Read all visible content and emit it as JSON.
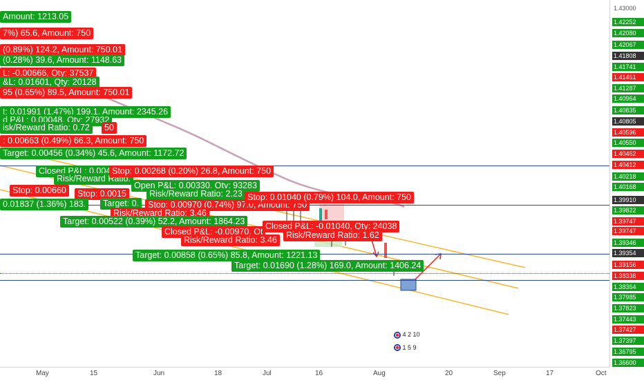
{
  "price_axis": {
    "labels": [
      {
        "text": "1.43000",
        "style": "n"
      },
      {
        "text": "1.42252",
        "style": "g"
      },
      {
        "text": "1.42080",
        "style": "g"
      },
      {
        "text": "1.42067",
        "style": "g"
      },
      {
        "text": "1.41808",
        "style": "d"
      },
      {
        "text": "1.41741",
        "style": "g"
      },
      {
        "text": "1.41461",
        "style": "r"
      },
      {
        "text": "1.41287",
        "style": "g"
      },
      {
        "text": "1.40964",
        "style": "g"
      },
      {
        "text": "1.40835",
        "style": "g"
      },
      {
        "text": "1.40805",
        "style": "d"
      },
      {
        "text": "1.40596",
        "style": "r"
      },
      {
        "text": "1.40550",
        "style": "g"
      },
      {
        "text": "1.40462",
        "style": "r"
      },
      {
        "text": "1.40412",
        "style": "r"
      },
      {
        "text": "1.40218",
        "style": "g"
      },
      {
        "text": "1.40168",
        "style": "g"
      },
      {
        "text": "1.39910",
        "style": "d"
      },
      {
        "text": "1.39822",
        "style": "g"
      },
      {
        "text": "1.39747",
        "style": "r"
      },
      {
        "text": "1.39747",
        "style": "r"
      },
      {
        "text": "1.39346",
        "style": "g"
      },
      {
        "text": "1.39354",
        "style": "d"
      },
      {
        "text": "1.39156",
        "style": "r"
      },
      {
        "text": "1.38338",
        "style": "r"
      },
      {
        "text": "1.38364",
        "style": "g"
      },
      {
        "text": "1.37985",
        "style": "g"
      },
      {
        "text": "1.37823",
        "style": "g"
      },
      {
        "text": "1.37443",
        "style": "g"
      },
      {
        "text": "1.37427",
        "style": "r"
      },
      {
        "text": "1.37397",
        "style": "g"
      },
      {
        "text": "1.36795",
        "style": "g"
      },
      {
        "text": "1.36600",
        "style": "g"
      }
    ]
  },
  "time_axis": {
    "labels": [
      {
        "text": "May"
      },
      {
        "text": "15"
      },
      {
        "text": "Jun"
      },
      {
        "text": "18"
      },
      {
        "text": "Jul"
      },
      {
        "text": "16"
      },
      {
        "text": "Aug"
      },
      {
        "text": "20"
      },
      {
        "text": "Sep"
      },
      {
        "text": "17"
      },
      {
        "text": "Oct"
      }
    ]
  },
  "events": {
    "top": "4 2 10",
    "bottom": "1 5 9"
  },
  "tags": [
    {
      "text": "Amount: 1213.05",
      "color": "green"
    },
    {
      "text": "7%) 65.6, Amount: 750",
      "color": "red"
    },
    {
      "text": "(0.89%) 124.2, Amount: 750.01",
      "color": "red"
    },
    {
      "text": "(0.28%) 39.6, Amount: 1148.63",
      "color": "green"
    },
    {
      "text": "L: -0.00666, Qty: 37537",
      "color": "red"
    },
    {
      "text": "&L: 0.01601, Qty: 20128",
      "color": "green"
    },
    {
      "text": "95 (0.65%) 89.5, Amount: 750.01",
      "color": "red"
    },
    {
      "text": "t: 0.01991 (1.47%) 199.1, Amount: 2345.26",
      "color": "green"
    },
    {
      "text": "d P&L: 0.00048, Qty: 27932",
      "color": "green"
    },
    {
      "text": "isk/Reward Ratio: 0.72",
      "color": "green"
    },
    {
      "text": "50",
      "color": "red"
    },
    {
      "text": ": 0.00663 (0.49%) 66.3, Amount: 750",
      "color": "red"
    },
    {
      "text": "Target: 0.00456 (0.34%) 45.6, Amount: 1172.72",
      "color": "green"
    },
    {
      "text": "Closed P&L: 0.004",
      "color": "green"
    },
    {
      "text": "Risk/Reward Ratio.",
      "color": "green"
    },
    {
      "text": "Stop: 0.00268 (0.20%) 26.8, Amount: 750",
      "color": "red"
    },
    {
      "text": "Stop: 0.00660",
      "color": "red"
    },
    {
      "text": "Stop: 0.0015",
      "color": "red"
    },
    {
      "text": "Open P&L: 0.00330, Qty: 93283",
      "color": "green"
    },
    {
      "text": "Risk/Reward Ratio: 2.23",
      "color": "green"
    },
    {
      "text": "Target: 0.",
      "color": "green"
    },
    {
      "text": "0.01837 (1.36%) 183.",
      "color": "green"
    },
    {
      "text": "Stop: 0.00970 (0.74%) 97.0, Amount: 750",
      "color": "red"
    },
    {
      "text": "Risk/Reward Ratio: 3.46",
      "color": "red"
    },
    {
      "text": "Stop: 0.01040 (0.79%) 104.0, Amount: 750",
      "color": "red"
    },
    {
      "text": "Target: 0.00522 (0.39%) 52.2, Amount: 1864.23",
      "color": "green"
    },
    {
      "text": "Closed P&L: -0.00970, Qt",
      "color": "red"
    },
    {
      "text": "Risk/Reward Ratio: 3.46",
      "color": "red"
    },
    {
      "text": "Closed P&L: -0.01040, Qty: 24038",
      "color": "red"
    },
    {
      "text": "Risk/Reward Ratio: 1.62",
      "color": "red"
    },
    {
      "text": "Target: 0.00858 (0.65%) 85.8, Amount: 1221.13",
      "color": "green"
    },
    {
      "text": "Target: 0.01690 (1.28%) 169.0, Amount: 1406.24",
      "color": "green"
    }
  ]
}
